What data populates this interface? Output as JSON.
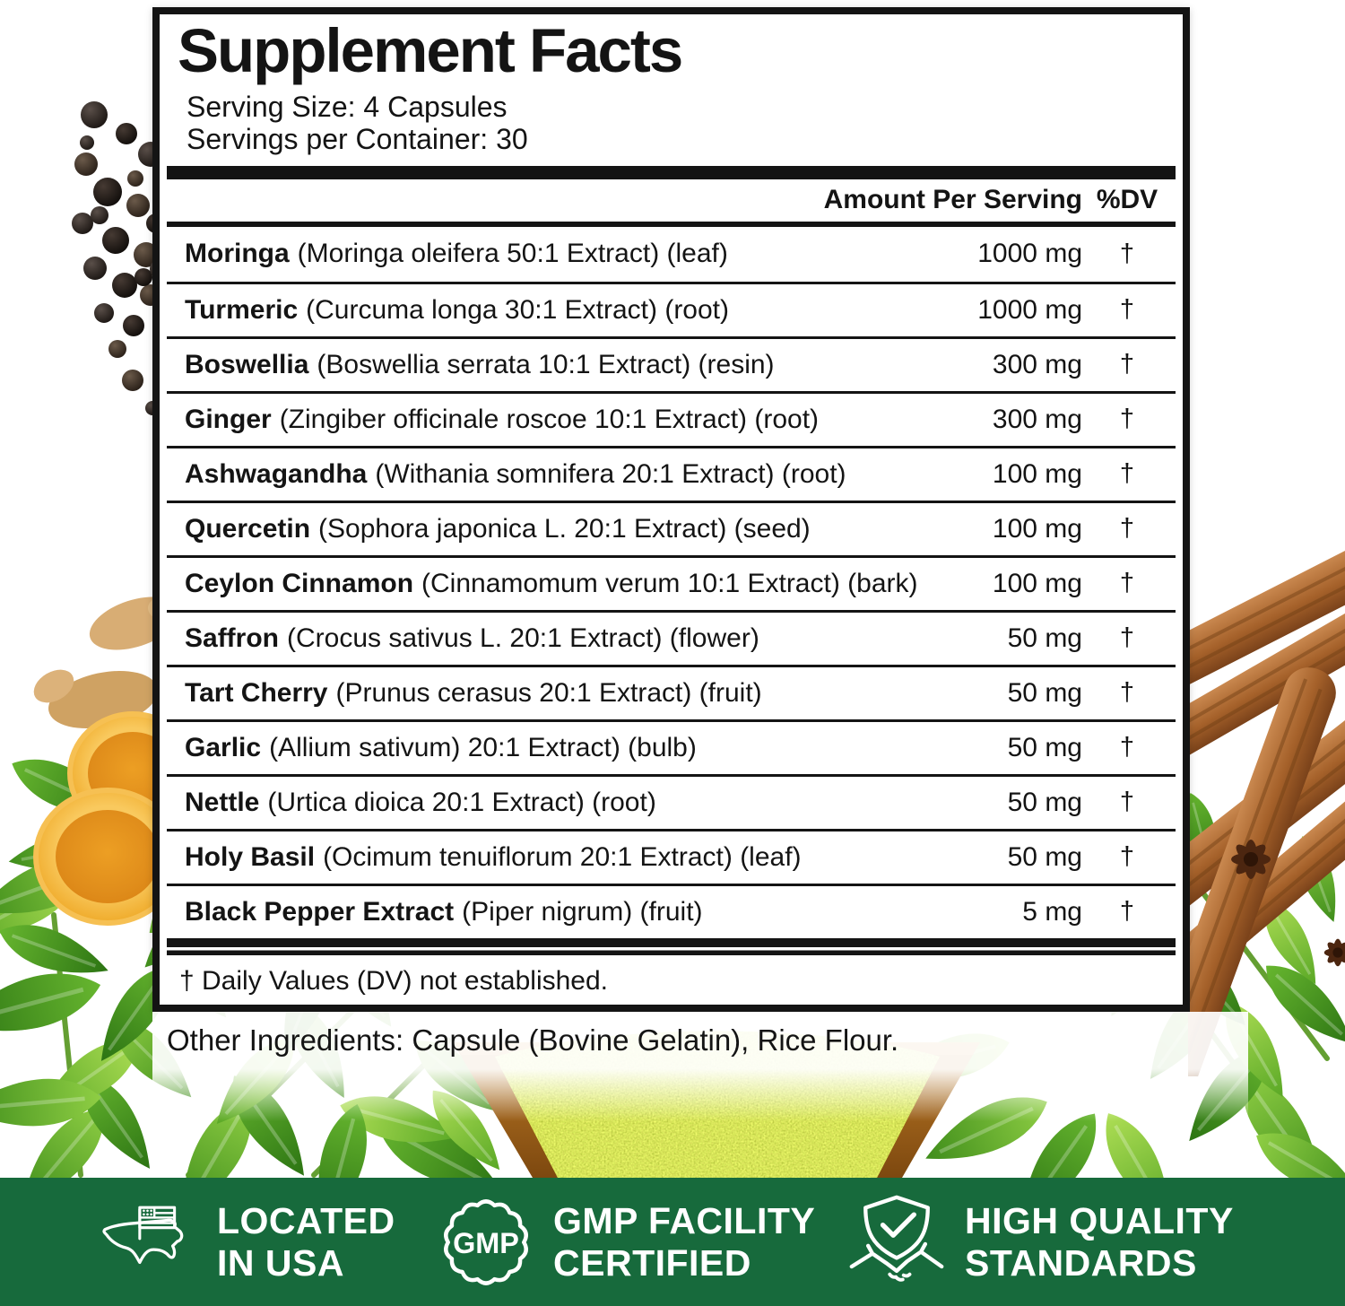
{
  "panel": {
    "title": "Supplement Facts",
    "serving_size": "Serving Size: 4 Capsules",
    "servings_per_container": "Servings per Container: 30",
    "columns": {
      "amount": "Amount Per Serving",
      "dv": "%DV"
    },
    "rows": [
      {
        "name": "Moringa",
        "desc": "(Moringa oleifera 50:1 Extract) (leaf)",
        "amount": "1000 mg",
        "dv": "†"
      },
      {
        "name": "Turmeric",
        "desc": "(Curcuma longa 30:1 Extract) (root)",
        "amount": "1000 mg",
        "dv": "†"
      },
      {
        "name": "Boswellia",
        "desc": "(Boswellia serrata 10:1 Extract) (resin)",
        "amount": "300 mg",
        "dv": "†"
      },
      {
        "name": "Ginger",
        "desc": "(Zingiber officinale roscoe 10:1 Extract) (root)",
        "amount": "300 mg",
        "dv": "†"
      },
      {
        "name": "Ashwagandha",
        "desc": "(Withania somnifera 20:1 Extract) (root)",
        "amount": "100 mg",
        "dv": "†"
      },
      {
        "name": "Quercetin",
        "desc": "(Sophora japonica L. 20:1 Extract) (seed)",
        "amount": "100 mg",
        "dv": "†"
      },
      {
        "name": "Ceylon Cinnamon",
        "desc": "(Cinnamomum verum 10:1 Extract) (bark)",
        "amount": "100 mg",
        "dv": "†"
      },
      {
        "name": "Saffron",
        "desc": "(Crocus sativus L. 20:1 Extract) (flower)",
        "amount": "50 mg",
        "dv": "†"
      },
      {
        "name": "Tart Cherry",
        "desc": "(Prunus cerasus 20:1 Extract) (fruit)",
        "amount": "50 mg",
        "dv": "†"
      },
      {
        "name": "Garlic",
        "desc": "(Allium sativum) 20:1 Extract) (bulb)",
        "amount": "50 mg",
        "dv": "†"
      },
      {
        "name": "Nettle",
        "desc": "(Urtica dioica 20:1 Extract) (root)",
        "amount": "50 mg",
        "dv": "†"
      },
      {
        "name": "Holy Basil",
        "desc": "(Ocimum tenuiflorum 20:1 Extract) (leaf)",
        "amount": "50 mg",
        "dv": "†"
      },
      {
        "name": "Black Pepper Extract",
        "desc": "(Piper nigrum) (fruit)",
        "amount": "5 mg",
        "dv": "†"
      }
    ],
    "footnote": "† Daily Values (DV) not established."
  },
  "other_ingredients": "Other Ingredients: Capsule (Bovine Gelatin), Rice Flour.",
  "banner": {
    "color": "#176A3C",
    "badges": [
      {
        "icon": "usa-map-flag-icon",
        "line1": "LOCATED",
        "line2": "IN USA"
      },
      {
        "icon": "gmp-seal-icon",
        "line1": "GMP FACILITY",
        "line2": "CERTIFIED",
        "seal_text": "GMP"
      },
      {
        "icon": "shield-check-handshake-icon",
        "line1": "HIGH QUALITY",
        "line2": "STANDARDS"
      }
    ]
  },
  "decor": {
    "images": [
      "black-peppercorns",
      "ginger-root",
      "turmeric-slices",
      "moringa-leaves",
      "cinnamon-sticks",
      "star-anise",
      "bowl-of-moringa-powder"
    ]
  }
}
